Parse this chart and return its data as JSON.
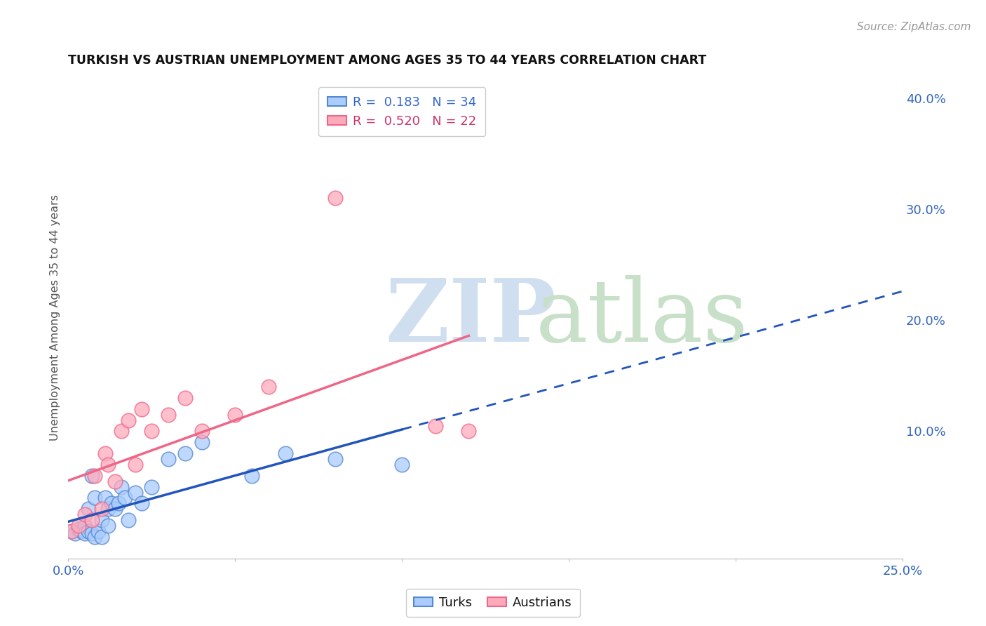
{
  "title": "TURKISH VS AUSTRIAN UNEMPLOYMENT AMONG AGES 35 TO 44 YEARS CORRELATION CHART",
  "source": "Source: ZipAtlas.com",
  "ylabel": "Unemployment Among Ages 35 to 44 years",
  "xlim": [
    0.0,
    0.25
  ],
  "ylim": [
    -0.015,
    0.42
  ],
  "xticks": [
    0.0,
    0.05,
    0.1,
    0.15,
    0.2,
    0.25
  ],
  "xtick_labels": [
    "0.0%",
    "",
    "",
    "",
    "",
    "25.0%"
  ],
  "yticks_right": [
    0.0,
    0.1,
    0.2,
    0.3,
    0.4
  ],
  "ytick_labels_right": [
    "",
    "10.0%",
    "20.0%",
    "30.0%",
    "40.0%"
  ],
  "turks_color": "#aaccff",
  "turks_edge_color": "#5588cc",
  "austrians_color": "#ffaabb",
  "austrians_edge_color": "#ee6688",
  "turks_line_color": "#2255bb",
  "austrians_line_color": "#ee6688",
  "legend_r_turks": "0.183",
  "legend_n_turks": "34",
  "legend_r_austrians": "0.520",
  "legend_n_austrians": "22",
  "turks_x": [
    0.001,
    0.002,
    0.003,
    0.004,
    0.005,
    0.005,
    0.006,
    0.006,
    0.007,
    0.007,
    0.008,
    0.008,
    0.009,
    0.01,
    0.01,
    0.011,
    0.012,
    0.012,
    0.013,
    0.014,
    0.015,
    0.016,
    0.017,
    0.018,
    0.02,
    0.022,
    0.025,
    0.03,
    0.035,
    0.04,
    0.055,
    0.065,
    0.08,
    0.1
  ],
  "turks_y": [
    0.01,
    0.008,
    0.012,
    0.01,
    0.015,
    0.008,
    0.03,
    0.01,
    0.06,
    0.008,
    0.04,
    0.005,
    0.01,
    0.02,
    0.005,
    0.04,
    0.03,
    0.015,
    0.035,
    0.03,
    0.035,
    0.05,
    0.04,
    0.02,
    0.045,
    0.035,
    0.05,
    0.075,
    0.08,
    0.09,
    0.06,
    0.08,
    0.075,
    0.07
  ],
  "austrians_x": [
    0.001,
    0.003,
    0.005,
    0.007,
    0.008,
    0.01,
    0.011,
    0.012,
    0.014,
    0.016,
    0.018,
    0.02,
    0.022,
    0.025,
    0.03,
    0.035,
    0.04,
    0.05,
    0.06,
    0.08,
    0.11,
    0.12
  ],
  "austrians_y": [
    0.01,
    0.015,
    0.025,
    0.02,
    0.06,
    0.03,
    0.08,
    0.07,
    0.055,
    0.1,
    0.11,
    0.07,
    0.12,
    0.1,
    0.115,
    0.13,
    0.1,
    0.115,
    0.14,
    0.31,
    0.105,
    0.1
  ],
  "background_color": "#ffffff",
  "grid_color": "#cccccc"
}
